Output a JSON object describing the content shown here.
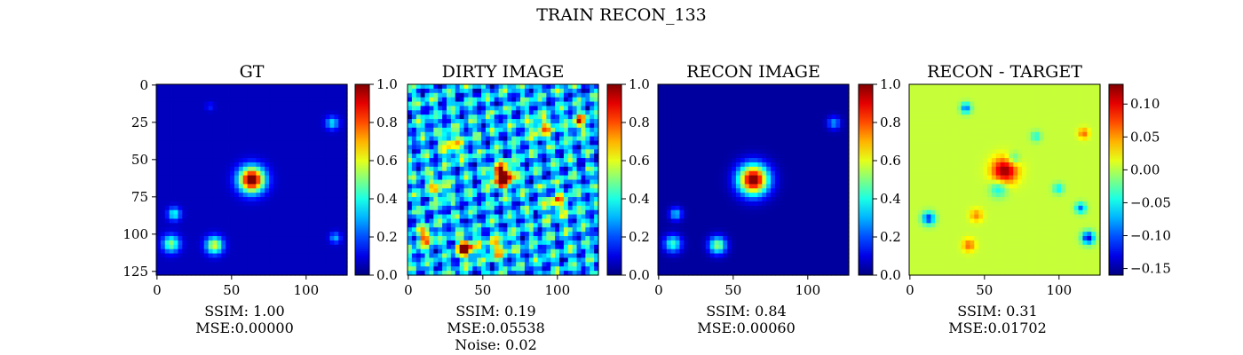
{
  "figure": {
    "suptitle": "TRAIN RECON_133"
  },
  "chart_data": [
    {
      "type": "heatmap",
      "title": "GT",
      "xticks": [
        0,
        50,
        100
      ],
      "yticks": [
        0,
        25,
        50,
        75,
        100,
        125
      ],
      "xlim": [
        0,
        127
      ],
      "ylim": [
        127,
        0
      ],
      "colorbar": {
        "range": [
          0.0,
          1.0
        ],
        "ticks": [
          "0.0",
          "0.2",
          "0.4",
          "0.6",
          "0.8",
          "1.0"
        ],
        "colormap": "jet"
      },
      "metrics": [
        "SSIM: 1.00",
        "MSE:0.00000"
      ],
      "blobs": [
        [
          64,
          64,
          6,
          1.0
        ],
        [
          10,
          107,
          4,
          0.45
        ],
        [
          39,
          108,
          4,
          0.55
        ],
        [
          12,
          87,
          3,
          0.35
        ],
        [
          118,
          26,
          3,
          0.3
        ],
        [
          120,
          103,
          2.5,
          0.25
        ],
        [
          36,
          15,
          2,
          0.1
        ]
      ],
      "base": 0.06
    },
    {
      "type": "heatmap",
      "title": "DIRTY IMAGE",
      "xticks": [
        0,
        50,
        100
      ],
      "xlim": [
        0,
        127
      ],
      "ylim": [
        127,
        0
      ],
      "colorbar": {
        "range": [
          0.0,
          1.0
        ],
        "ticks": [
          "0.0",
          "0.2",
          "0.4",
          "0.6",
          "0.8",
          "1.0"
        ],
        "colormap": "jet"
      },
      "metrics": [
        "SSIM: 0.19",
        "MSE:0.05538",
        "Noise: 0.02"
      ],
      "blobs": [
        [
          64,
          62,
          5,
          0.9
        ],
        [
          39,
          110,
          4,
          0.8
        ],
        [
          12,
          103,
          4,
          0.45
        ],
        [
          115,
          25,
          4,
          0.4
        ],
        [
          30,
          40,
          5,
          0.35
        ],
        [
          90,
          30,
          5,
          0.35
        ],
        [
          100,
          80,
          5,
          0.35
        ],
        [
          60,
          110,
          5,
          0.35
        ],
        [
          20,
          70,
          5,
          0.3
        ]
      ],
      "base": 0.3,
      "noise": true
    },
    {
      "type": "heatmap",
      "title": "RECON IMAGE",
      "xticks": [
        0,
        50,
        100
      ],
      "xlim": [
        0,
        127
      ],
      "ylim": [
        127,
        0
      ],
      "colorbar": {
        "range": [
          0.0,
          1.0
        ],
        "ticks": [
          "0.0",
          "0.2",
          "0.4",
          "0.6",
          "0.8",
          "1.0"
        ],
        "colormap": "jet"
      },
      "metrics": [
        "SSIM: 0.84",
        "MSE:0.00060"
      ],
      "blobs": [
        [
          64,
          64,
          7,
          1.0
        ],
        [
          10,
          107,
          4,
          0.4
        ],
        [
          40,
          108,
          4,
          0.5
        ],
        [
          12,
          87,
          3,
          0.3
        ],
        [
          118,
          26,
          3,
          0.25
        ]
      ],
      "base": 0.03
    },
    {
      "type": "heatmap",
      "title": "RECON - TARGET",
      "xticks": [
        0,
        50,
        100
      ],
      "xlim": [
        0,
        127
      ],
      "ylim": [
        127,
        0
      ],
      "colorbar": {
        "range": [
          -0.16,
          0.13
        ],
        "ticks": [
          "0.10",
          "0.05",
          "0.00",
          "−0.05",
          "−0.10",
          "−0.15"
        ],
        "tickvalues": [
          0.1,
          0.05,
          0.0,
          -0.05,
          -0.1,
          -0.15
        ],
        "colormap": "jet"
      },
      "metrics": [
        "SSIM: 0.31",
        "MSE:0.01702"
      ],
      "blobs": [
        [
          64,
          58,
          6,
          0.12
        ],
        [
          60,
          70,
          4,
          -0.06
        ],
        [
          70,
          50,
          3,
          -0.05
        ],
        [
          13,
          90,
          3,
          -0.12
        ],
        [
          120,
          103,
          3,
          -0.14
        ],
        [
          38,
          16,
          2.5,
          -0.1
        ],
        [
          115,
          83,
          2.5,
          -0.1
        ],
        [
          45,
          88,
          3,
          0.05
        ],
        [
          40,
          108,
          3,
          0.06
        ],
        [
          117,
          33,
          2.5,
          0.06
        ],
        [
          85,
          35,
          2.5,
          -0.05
        ],
        [
          100,
          70,
          2.5,
          -0.06
        ]
      ],
      "base": 0.005
    }
  ]
}
